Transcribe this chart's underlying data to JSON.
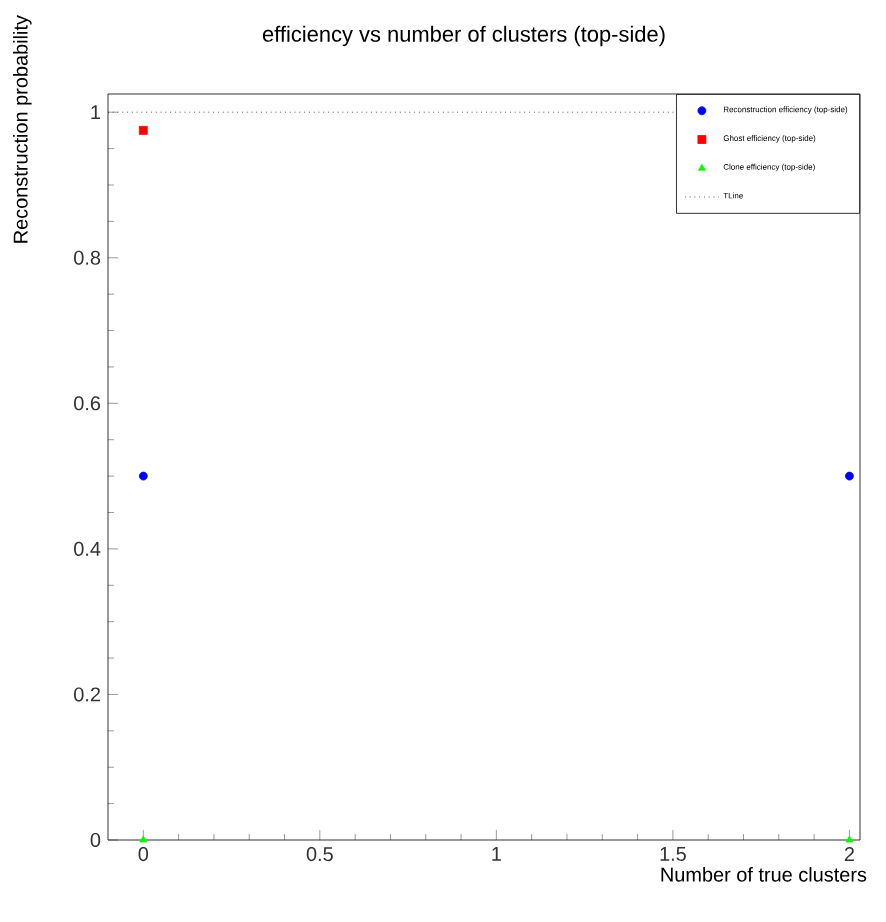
{
  "chart_data": {
    "type": "scatter",
    "title": "efficiency vs number of clusters (top-side)",
    "xlabel": "Number of true clusters",
    "ylabel": "Reconstruction probability",
    "x": [
      0,
      2
    ],
    "xlim": [
      -0.1,
      2.03
    ],
    "ylim": [
      0,
      1.025
    ],
    "xticks": [
      0,
      0.5,
      1,
      1.5,
      2
    ],
    "yticks": [
      0,
      0.2,
      0.4,
      0.6,
      0.8,
      1
    ],
    "series": [
      {
        "name": "Reconstruction efficiency (top-side)",
        "color": "#0000ff",
        "marker": "circle",
        "values": [
          0.5,
          0.5
        ]
      },
      {
        "name": "Ghost efficiency (top-side)",
        "color": "#ff0000",
        "marker": "square",
        "values": [
          0.975,
          null
        ]
      },
      {
        "name": "Clone efficiency (top-side)",
        "color": "#00ff00",
        "marker": "triangle",
        "values": [
          0,
          0
        ]
      }
    ],
    "ref_lines": [
      {
        "axis": "y",
        "value": 1,
        "label": "TLine",
        "color": "#000000",
        "line_style": "dotted"
      }
    ],
    "legend": "top right",
    "grid": false
  }
}
